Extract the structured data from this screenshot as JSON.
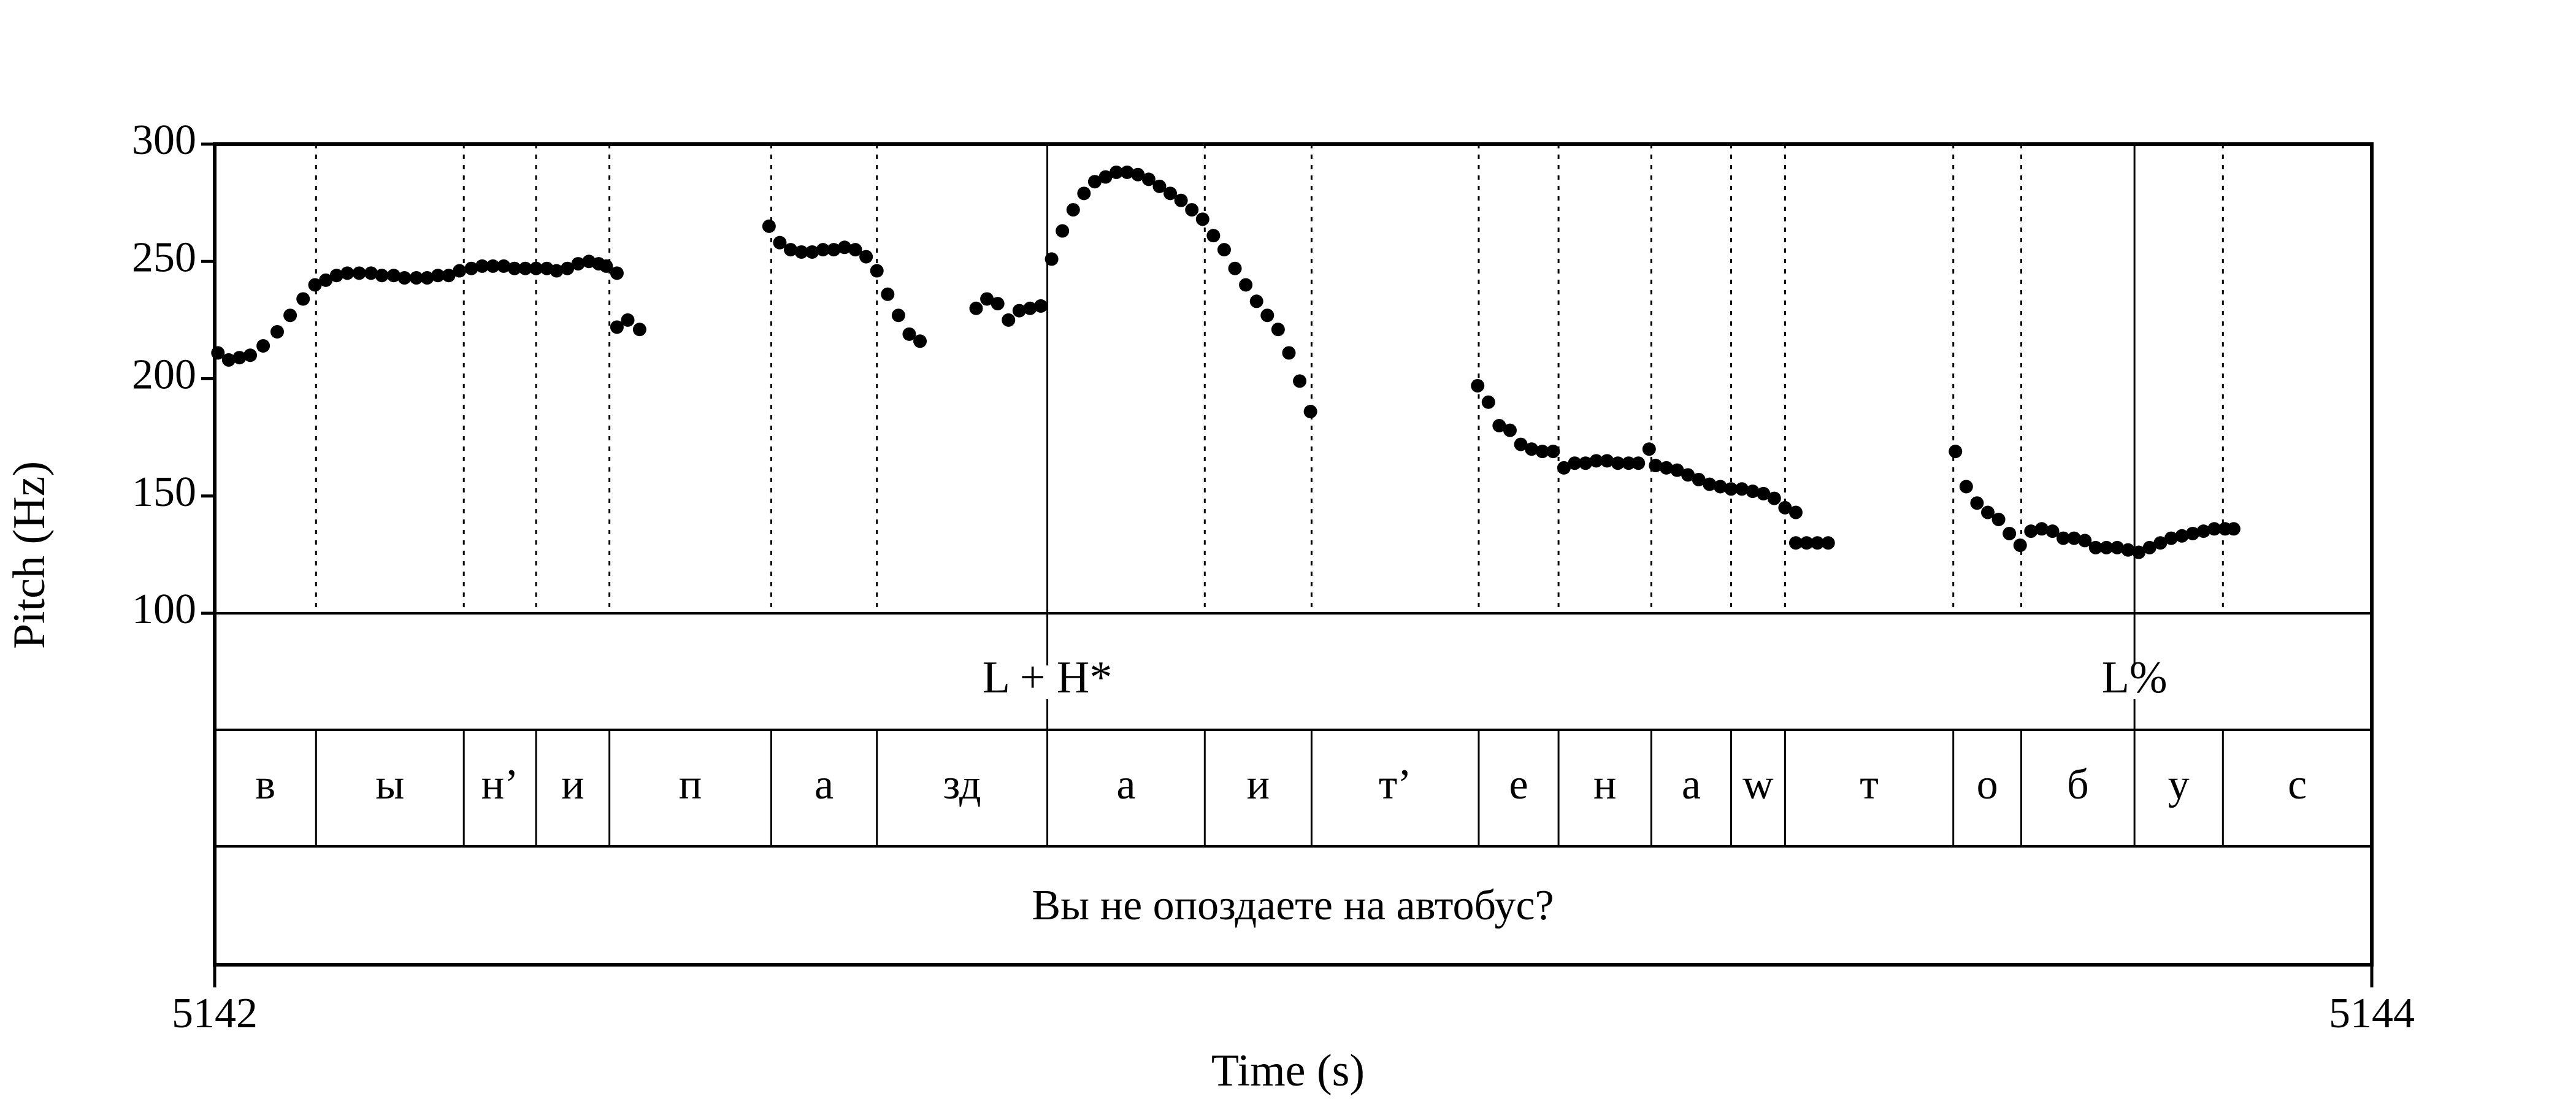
{
  "chart_data": {
    "type": "scatter",
    "xlabel": "Time (s)",
    "ylabel": "Pitch (Hz)",
    "xlim": [
      5142,
      5144
    ],
    "ylim": [
      100,
      300
    ],
    "x_tick_labels": [
      "5142",
      "5144"
    ],
    "y_ticks": [
      100,
      150,
      200,
      250,
      300
    ],
    "y_tick_labels": [
      "100",
      "150",
      "200",
      "250",
      "300"
    ],
    "grid": false,
    "marker_color": "#000000",
    "series": [
      {
        "points": [
          [
            5142.003,
            211
          ],
          [
            5142.013,
            208
          ],
          [
            5142.023,
            209
          ],
          [
            5142.033,
            210
          ],
          [
            5142.045,
            214
          ],
          [
            5142.058,
            220
          ],
          [
            5142.07,
            227
          ],
          [
            5142.082,
            234
          ],
          [
            5142.093,
            240
          ],
          [
            5142.103,
            242
          ],
          [
            5142.113,
            244
          ],
          [
            5142.123,
            245
          ],
          [
            5142.134,
            245
          ],
          [
            5142.145,
            245
          ],
          [
            5142.155,
            244
          ],
          [
            5142.166,
            244
          ],
          [
            5142.176,
            243
          ],
          [
            5142.187,
            243
          ],
          [
            5142.197,
            243
          ],
          [
            5142.207,
            244
          ],
          [
            5142.217,
            244
          ],
          [
            5142.227,
            246
          ],
          [
            5142.238,
            247
          ],
          [
            5142.248,
            248
          ],
          [
            5142.258,
            248
          ],
          [
            5142.268,
            248
          ],
          [
            5142.278,
            247
          ],
          [
            5142.288,
            247
          ],
          [
            5142.298,
            247
          ],
          [
            5142.308,
            247
          ],
          [
            5142.317,
            246
          ],
          [
            5142.327,
            247
          ],
          [
            5142.337,
            249
          ],
          [
            5142.347,
            250
          ],
          [
            5142.356,
            249
          ],
          [
            5142.363,
            248
          ],
          [
            5142.373,
            245
          ],
          [
            5142.373,
            222
          ],
          [
            5142.383,
            225
          ],
          [
            5142.394,
            221
          ],
          [
            5142.514,
            265
          ],
          [
            5142.524,
            258
          ],
          [
            5142.534,
            255
          ],
          [
            5142.544,
            254
          ],
          [
            5142.554,
            254
          ],
          [
            5142.564,
            255
          ],
          [
            5142.574,
            255
          ],
          [
            5142.584,
            256
          ],
          [
            5142.594,
            255
          ],
          [
            5142.604,
            252
          ],
          [
            5142.614,
            246
          ],
          [
            5142.624,
            236
          ],
          [
            5142.634,
            227
          ],
          [
            5142.644,
            219
          ],
          [
            5142.654,
            216
          ],
          [
            5142.706,
            230
          ],
          [
            5142.716,
            234
          ],
          [
            5142.726,
            232
          ],
          [
            5142.736,
            225
          ],
          [
            5142.746,
            229
          ],
          [
            5142.756,
            230
          ],
          [
            5142.766,
            231
          ],
          [
            5142.776,
            251
          ],
          [
            5142.786,
            263
          ],
          [
            5142.796,
            272
          ],
          [
            5142.806,
            279
          ],
          [
            5142.816,
            284
          ],
          [
            5142.826,
            286
          ],
          [
            5142.836,
            288
          ],
          [
            5142.846,
            288
          ],
          [
            5142.856,
            287
          ],
          [
            5142.866,
            285
          ],
          [
            5142.876,
            282
          ],
          [
            5142.886,
            279
          ],
          [
            5142.896,
            276
          ],
          [
            5142.906,
            272
          ],
          [
            5142.916,
            268
          ],
          [
            5142.926,
            261
          ],
          [
            5142.936,
            255
          ],
          [
            5142.946,
            247
          ],
          [
            5142.956,
            240
          ],
          [
            5142.966,
            233
          ],
          [
            5142.976,
            227
          ],
          [
            5142.986,
            221
          ],
          [
            5142.996,
            211
          ],
          [
            5143.006,
            199
          ],
          [
            5143.016,
            186
          ],
          [
            5143.171,
            197
          ],
          [
            5143.181,
            190
          ],
          [
            5143.191,
            180
          ],
          [
            5143.201,
            178
          ],
          [
            5143.211,
            172
          ],
          [
            5143.221,
            170
          ],
          [
            5143.231,
            169
          ],
          [
            5143.241,
            169
          ],
          [
            5143.251,
            162
          ],
          [
            5143.261,
            164
          ],
          [
            5143.271,
            164
          ],
          [
            5143.281,
            165
          ],
          [
            5143.291,
            165
          ],
          [
            5143.301,
            164
          ],
          [
            5143.311,
            164
          ],
          [
            5143.32,
            164
          ],
          [
            5143.33,
            170
          ],
          [
            5143.336,
            163
          ],
          [
            5143.346,
            162
          ],
          [
            5143.356,
            161
          ],
          [
            5143.366,
            159
          ],
          [
            5143.376,
            157
          ],
          [
            5143.386,
            155
          ],
          [
            5143.396,
            154
          ],
          [
            5143.406,
            153
          ],
          [
            5143.416,
            153
          ],
          [
            5143.426,
            152
          ],
          [
            5143.436,
            151
          ],
          [
            5143.446,
            149
          ],
          [
            5143.456,
            145
          ],
          [
            5143.466,
            143
          ],
          [
            5143.466,
            130
          ],
          [
            5143.476,
            130
          ],
          [
            5143.486,
            130
          ],
          [
            5143.496,
            130
          ],
          [
            5143.614,
            169
          ],
          [
            5143.624,
            154
          ],
          [
            5143.634,
            147
          ],
          [
            5143.644,
            143
          ],
          [
            5143.654,
            140
          ],
          [
            5143.664,
            134
          ],
          [
            5143.674,
            129
          ],
          [
            5143.684,
            135
          ],
          [
            5143.694,
            136
          ],
          [
            5143.704,
            135
          ],
          [
            5143.714,
            132
          ],
          [
            5143.724,
            132
          ],
          [
            5143.734,
            131
          ],
          [
            5143.744,
            128
          ],
          [
            5143.754,
            128
          ],
          [
            5143.764,
            128
          ],
          [
            5143.774,
            127
          ],
          [
            5143.784,
            126
          ],
          [
            5143.794,
            128
          ],
          [
            5143.804,
            130
          ],
          [
            5143.814,
            132
          ],
          [
            5143.824,
            133
          ],
          [
            5143.834,
            134
          ],
          [
            5143.844,
            135
          ],
          [
            5143.854,
            136
          ],
          [
            5143.864,
            136
          ],
          [
            5143.872,
            136
          ]
        ]
      }
    ],
    "boundaries": [
      5142.094,
      5142.231,
      5142.298,
      5142.366,
      5142.516,
      5142.614,
      5142.772,
      5142.918,
      5143.017,
      5143.172,
      5143.246,
      5143.332,
      5143.406,
      5143.456,
      5143.612,
      5143.675,
      5143.78,
      5143.862
    ],
    "tiers": {
      "tones": [
        {
          "label": "L + H*",
          "time": 5142.772
        },
        {
          "label": "L%",
          "time": 5143.78
        }
      ],
      "phones": [
        "в",
        "ы",
        "н’",
        "и",
        "п",
        "а",
        "зд",
        "а",
        "и",
        "т’",
        "е",
        "н",
        "а",
        "w",
        "т",
        "о",
        "б",
        "у",
        "с"
      ],
      "sentence": "Вы не опоздаете на автобус?"
    }
  }
}
